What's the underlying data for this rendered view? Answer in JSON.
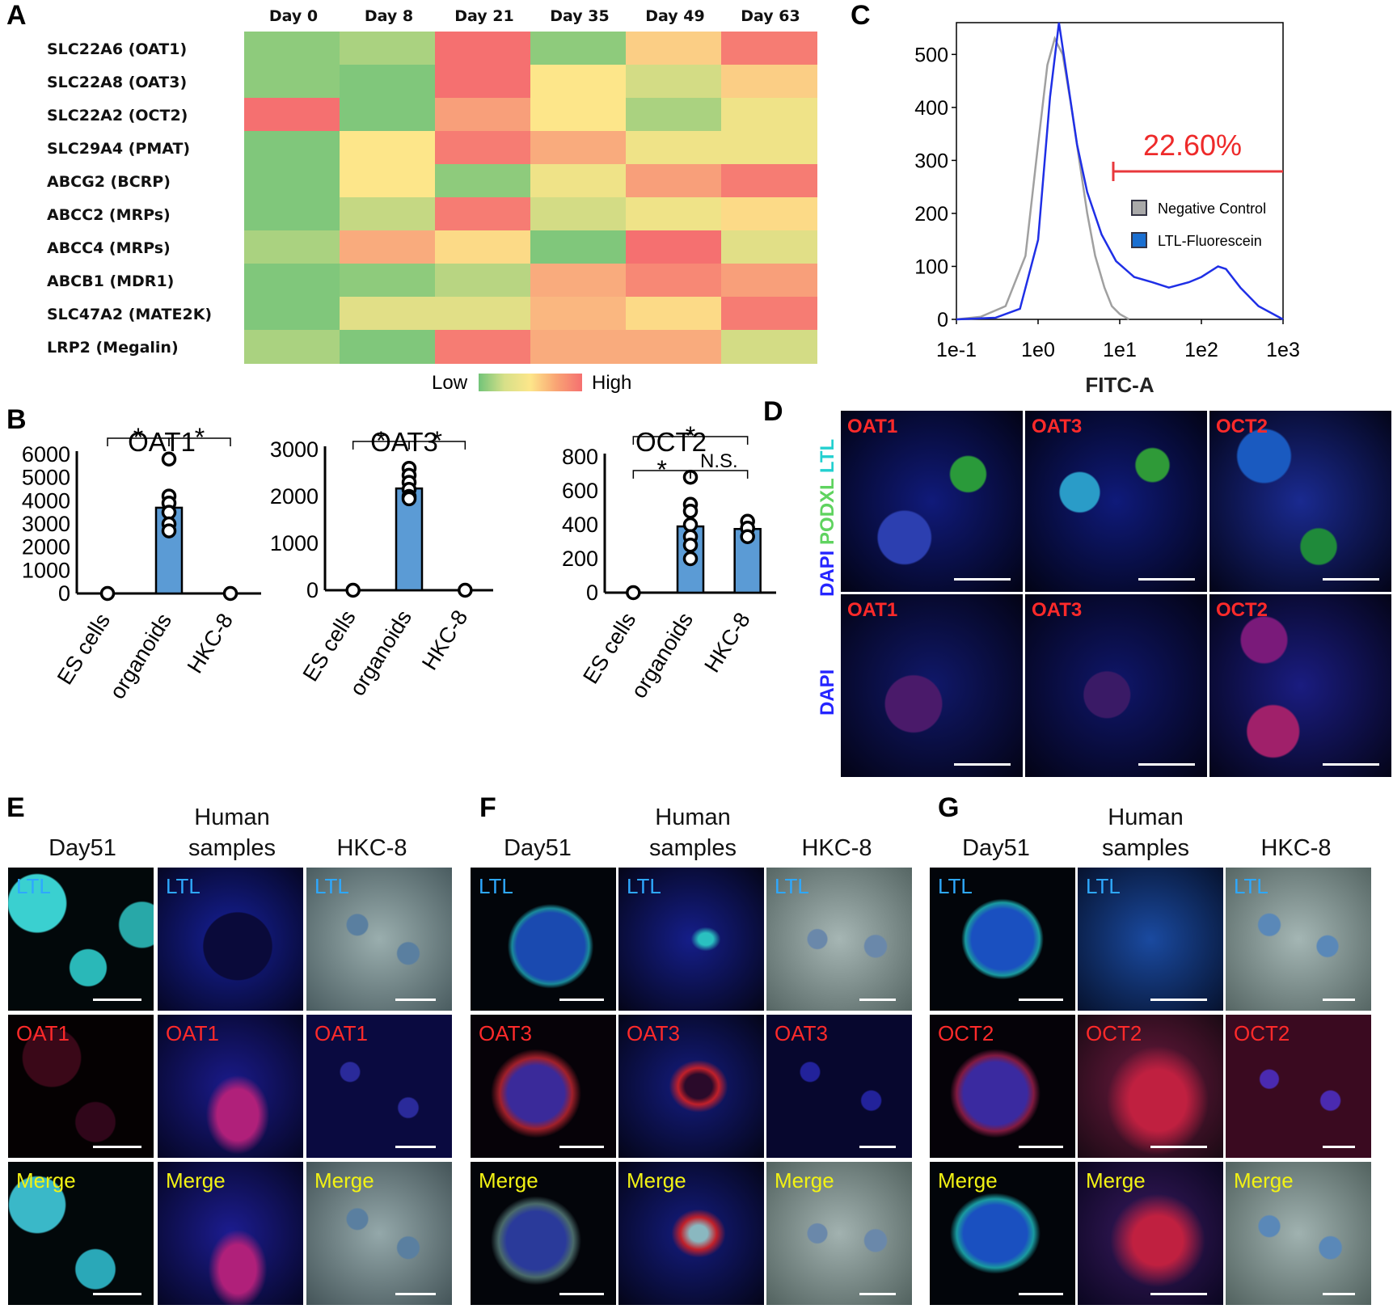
{
  "panels": {
    "a": "A",
    "b": "B",
    "c": "C",
    "d": "D",
    "e": "E",
    "f": "F",
    "g": "G"
  },
  "heatmap": {
    "days": [
      "Day 0",
      "Day 8",
      "Day 21",
      "Day 35",
      "Day 49",
      "Day 63"
    ],
    "genes": [
      "SLC22A6 (OAT1)",
      "SLC22A8 (OAT3)",
      "SLC22A2 (OCT2)",
      "SLC29A4 (PMAT)",
      "ABCG2 (BCRP)",
      "ABCC2 (MRPs)",
      "ABCC4 (MRPs)",
      "ABCB1 (MDR1)",
      "SLC47A2 (MATE2K)",
      "LRP2 (Megalin)"
    ],
    "levels": [
      [
        0.1,
        0.2,
        1.0,
        0.1,
        0.6,
        0.95
      ],
      [
        0.1,
        0.05,
        1.0,
        0.5,
        0.35,
        0.6
      ],
      [
        1.0,
        0.05,
        0.8,
        0.5,
        0.2,
        0.45
      ],
      [
        0.05,
        0.5,
        0.95,
        0.75,
        0.45,
        0.45
      ],
      [
        0.05,
        0.5,
        0.1,
        0.45,
        0.8,
        0.95
      ],
      [
        0.05,
        0.3,
        0.95,
        0.35,
        0.45,
        0.55
      ],
      [
        0.2,
        0.75,
        0.55,
        0.05,
        1.0,
        0.4
      ],
      [
        0.05,
        0.1,
        0.25,
        0.75,
        0.9,
        0.8
      ],
      [
        0.05,
        0.4,
        0.4,
        0.7,
        0.55,
        0.95
      ],
      [
        0.2,
        0.05,
        0.95,
        0.75,
        0.75,
        0.35
      ]
    ],
    "legend_low": "Low",
    "legend_high": "High",
    "scale_colors": [
      "#72c479",
      "#fde68a",
      "#f57070"
    ]
  },
  "chart_data": [
    {
      "type": "bar",
      "title": "OAT1",
      "categories": [
        "ES cells",
        "organoids",
        "HKC-8"
      ],
      "values": [
        0,
        3700,
        0
      ],
      "points": [
        [
          0
        ],
        [
          5800,
          4200,
          3900,
          3500,
          3000,
          2700
        ],
        [
          0
        ]
      ],
      "yticks": [
        "0",
        "1000",
        "2000",
        "3000",
        "4000",
        "5000",
        "6000"
      ],
      "ylim": [
        0,
        6000
      ],
      "significance": [
        {
          "pair": [
            0,
            1
          ],
          "label": "*"
        },
        {
          "pair": [
            1,
            2
          ],
          "label": "*"
        }
      ]
    },
    {
      "type": "bar",
      "title": "OAT3",
      "categories": [
        "ES cells",
        "organoids",
        "HKC-8"
      ],
      "values": [
        0,
        2170,
        0
      ],
      "points": [
        [
          0
        ],
        [
          2600,
          2450,
          2300,
          2150,
          2000,
          1950
        ],
        [
          0
        ]
      ],
      "yticks": [
        "0",
        "1000",
        "2000",
        "3000"
      ],
      "ylim": [
        0,
        3000
      ],
      "significance": [
        {
          "pair": [
            0,
            1
          ],
          "label": "*"
        },
        {
          "pair": [
            1,
            2
          ],
          "label": "*"
        }
      ]
    },
    {
      "type": "bar",
      "title": "OCT2",
      "categories": [
        "ES cells",
        "organoids",
        "HKC-8"
      ],
      "values": [
        0,
        390,
        375
      ],
      "points": [
        [
          0
        ],
        [
          680,
          520,
          480,
          400,
          330,
          280,
          200
        ],
        [
          420,
          380,
          330
        ]
      ],
      "yticks": [
        "0",
        "200",
        "400",
        "600",
        "800"
      ],
      "ylim": [
        0,
        800
      ],
      "significance": [
        {
          "pair": [
            0,
            1
          ],
          "label": "*"
        },
        {
          "pair": [
            1,
            2
          ],
          "label": "N.S."
        },
        {
          "pair": [
            0,
            2
          ],
          "label": "*"
        }
      ]
    },
    {
      "type": "line",
      "title": "",
      "xlabel": "FITC-A",
      "xticks": [
        "1e-1",
        "1e0",
        "1e1",
        "1e2",
        "1e3"
      ],
      "yticks": [
        "0",
        "100",
        "200",
        "300",
        "400",
        "500"
      ],
      "ylim": [
        0,
        560
      ],
      "gate_label": "22.60%",
      "series": [
        {
          "name": "Negative Control",
          "color": "#a0a0a0",
          "x": [
            0.1,
            0.2,
            0.4,
            0.7,
            1.0,
            1.3,
            1.6,
            2.0,
            2.5,
            3.2,
            4.0,
            5.0,
            6.5,
            8.0,
            10,
            13
          ],
          "y": [
            0,
            5,
            25,
            120,
            330,
            480,
            530,
            500,
            410,
            300,
            200,
            120,
            60,
            25,
            10,
            0
          ]
        },
        {
          "name": "LTL-Fluorescein",
          "color": "#1f2fe6",
          "x": [
            0.1,
            0.3,
            0.6,
            1.0,
            1.4,
            1.8,
            2.2,
            3.0,
            4.0,
            6.0,
            9.0,
            15,
            25,
            40,
            70,
            100,
            160,
            200,
            300,
            500,
            1000
          ],
          "y": [
            0,
            3,
            20,
            150,
            420,
            560,
            470,
            330,
            240,
            160,
            110,
            80,
            70,
            60,
            70,
            80,
            100,
            95,
            60,
            25,
            0
          ]
        }
      ]
    }
  ],
  "panel_d": {
    "side_top": [
      "DAPI",
      "PODXL",
      "LTL"
    ],
    "side_bottom": [
      "DAPI"
    ],
    "top_labels": [
      "OAT1",
      "OAT3",
      "OCT2"
    ],
    "bottom_labels": [
      "OAT1",
      "OAT3",
      "OCT2"
    ]
  },
  "panel_efg": {
    "col_day": "Day51",
    "col_human_1": "Human",
    "col_human_2": "samples",
    "col_hkc": "HKC-8",
    "row_ltl": "LTL",
    "row_merge": "Merge",
    "markers": [
      "OAT1",
      "OAT3",
      "OCT2"
    ]
  }
}
